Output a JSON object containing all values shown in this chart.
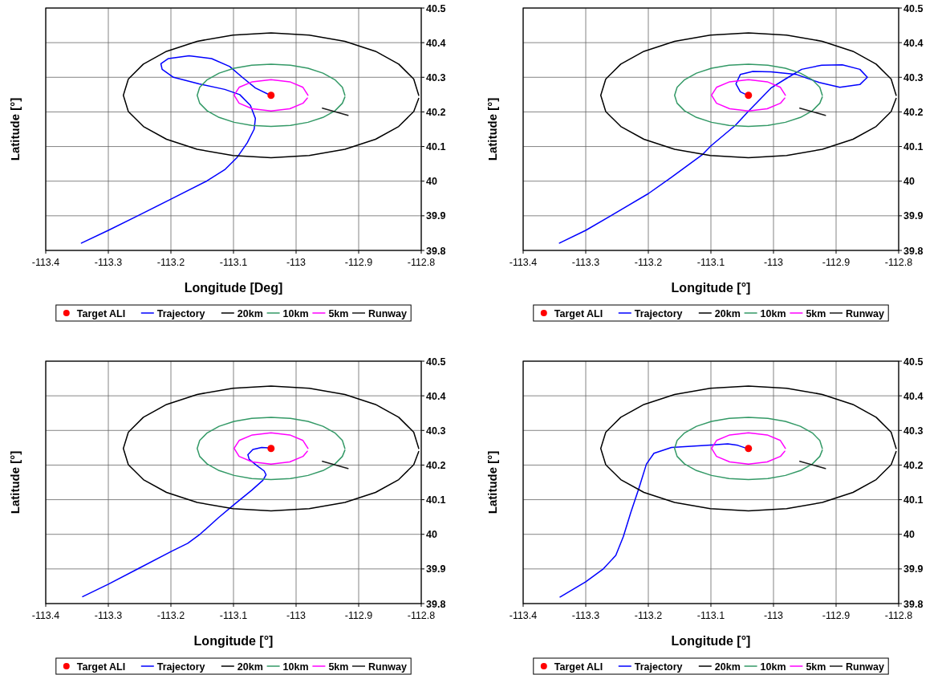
{
  "chart_data": [
    {
      "type": "line",
      "xlabel": "Longitude [Deg]",
      "ylabel": "Latitude [°]",
      "xlim": [
        -113.4,
        -112.8
      ],
      "ylim": [
        39.8,
        40.5
      ],
      "xticks": [
        -113.4,
        -113.3,
        -113.2,
        -113.1,
        -113,
        -112.9,
        -112.8
      ],
      "yticks": [
        39.8,
        39.9,
        40,
        40.1,
        40.2,
        40.3,
        40.4,
        40.5
      ],
      "grid": true,
      "legend": "bottom",
      "series": [
        {
          "name": "Target ALI",
          "type": "scatter",
          "marker": "circle",
          "color": "#ff0000",
          "x": [
            -113.04
          ],
          "values": [
            40.248
          ]
        },
        {
          "name": "Trajectory",
          "color": "#0000ff",
          "x": [
            -113.343,
            -113.3,
            -113.253,
            -113.2,
            -113.143,
            -113.114,
            -113.094,
            -113.078,
            -113.067,
            -113.065,
            -113.073,
            -113.09,
            -113.114,
            -113.155,
            -113.196,
            -113.214,
            -113.216,
            -113.204,
            -113.171,
            -113.135,
            -113.106,
            -113.086,
            -113.065,
            -113.041
          ],
          "values": [
            39.821,
            39.858,
            39.9,
            39.948,
            40.0,
            40.033,
            40.069,
            40.111,
            40.15,
            40.181,
            40.219,
            40.25,
            40.265,
            40.281,
            40.3,
            40.323,
            40.339,
            40.354,
            40.362,
            40.354,
            40.331,
            40.3,
            40.269,
            40.248
          ]
        },
        {
          "name": "20km",
          "color": "#000000",
          "x": [
            -112.804,
            -112.812,
            -112.836,
            -112.873,
            -112.922,
            -112.979,
            -113.04,
            -113.101,
            -113.158,
            -113.207,
            -113.244,
            -113.268,
            -113.276,
            -113.268,
            -113.244,
            -113.207,
            -113.158,
            -113.101,
            -113.04,
            -112.979,
            -112.922,
            -112.873,
            -112.836,
            -112.812,
            -112.804
          ],
          "values": [
            40.248,
            40.295,
            40.338,
            40.375,
            40.404,
            40.422,
            40.428,
            40.422,
            40.404,
            40.375,
            40.338,
            40.295,
            40.248,
            40.201,
            40.158,
            40.121,
            40.092,
            40.074,
            40.068,
            40.074,
            40.092,
            40.121,
            40.158,
            40.201,
            40.239
          ]
        },
        {
          "name": "10km",
          "color": "#339966",
          "x": [
            -112.922,
            -112.926,
            -112.938,
            -112.957,
            -112.981,
            -113.009,
            -113.04,
            -113.071,
            -113.099,
            -113.123,
            -113.142,
            -113.154,
            -113.158,
            -113.154,
            -113.142,
            -113.123,
            -113.099,
            -113.071,
            -113.04,
            -113.009,
            -112.981,
            -112.957,
            -112.938,
            -112.926,
            -112.922
          ],
          "values": [
            40.248,
            40.271,
            40.293,
            40.312,
            40.326,
            40.335,
            40.338,
            40.335,
            40.326,
            40.312,
            40.293,
            40.271,
            40.248,
            40.225,
            40.203,
            40.184,
            40.17,
            40.161,
            40.158,
            40.161,
            40.17,
            40.184,
            40.203,
            40.225,
            40.243
          ]
        },
        {
          "name": "5km",
          "color": "#ff00ff",
          "x": [
            -112.981,
            -112.989,
            -113.01,
            -113.04,
            -113.07,
            -113.091,
            -113.099,
            -113.091,
            -113.07,
            -113.04,
            -113.01,
            -112.989,
            -112.982
          ],
          "values": [
            40.248,
            40.271,
            40.287,
            40.293,
            40.287,
            40.271,
            40.248,
            40.225,
            40.209,
            40.203,
            40.209,
            40.225,
            40.24
          ]
        },
        {
          "name": "Runway",
          "color": "#1a1a1a",
          "x": [
            -112.958,
            -112.917
          ],
          "values": [
            40.211,
            40.19
          ]
        }
      ]
    },
    {
      "type": "line",
      "xlabel": "Longitude [°]",
      "ylabel": "Latitude [°]",
      "xlim": [
        -113.4,
        -112.8
      ],
      "ylim": [
        39.8,
        40.5
      ],
      "xticks": [
        -113.4,
        -113.3,
        -113.2,
        -113.1,
        -113,
        -112.9,
        -112.8
      ],
      "yticks": [
        39.8,
        39.9,
        40,
        40.1,
        40.2,
        40.3,
        40.4,
        40.5
      ],
      "grid": true,
      "legend": "bottom",
      "series": [
        {
          "name": "Target ALI",
          "type": "scatter",
          "marker": "circle",
          "color": "#ff0000",
          "x": [
            -113.04
          ],
          "values": [
            40.248
          ]
        },
        {
          "name": "Trajectory",
          "color": "#0000ff",
          "x": [
            -113.342,
            -113.3,
            -113.26,
            -113.2,
            -113.163,
            -113.114,
            -113.1,
            -113.061,
            -113.039,
            -113.004,
            -112.98,
            -112.955,
            -112.923,
            -112.89,
            -112.862,
            -112.85,
            -112.862,
            -112.894,
            -112.927,
            -112.963,
            -113.004,
            -113.033,
            -113.053,
            -113.06,
            -113.053,
            -113.039
          ],
          "values": [
            39.821,
            39.858,
            39.9,
            39.964,
            40.011,
            40.076,
            40.102,
            40.161,
            40.204,
            40.269,
            40.296,
            40.323,
            40.335,
            40.336,
            40.323,
            40.3,
            40.279,
            40.271,
            40.285,
            40.308,
            40.316,
            40.317,
            40.308,
            40.281,
            40.258,
            40.246
          ]
        },
        {
          "name": "20km",
          "color": "#000000",
          "x": [
            -112.804,
            -112.812,
            -112.836,
            -112.873,
            -112.922,
            -112.979,
            -113.04,
            -113.101,
            -113.158,
            -113.207,
            -113.244,
            -113.268,
            -113.276,
            -113.268,
            -113.244,
            -113.207,
            -113.158,
            -113.101,
            -113.04,
            -112.979,
            -112.922,
            -112.873,
            -112.836,
            -112.812,
            -112.804
          ],
          "values": [
            40.248,
            40.295,
            40.338,
            40.375,
            40.404,
            40.422,
            40.428,
            40.422,
            40.404,
            40.375,
            40.338,
            40.295,
            40.248,
            40.201,
            40.158,
            40.121,
            40.092,
            40.074,
            40.068,
            40.074,
            40.092,
            40.121,
            40.158,
            40.201,
            40.239
          ]
        },
        {
          "name": "10km",
          "color": "#339966",
          "x": [
            -112.922,
            -112.926,
            -112.938,
            -112.957,
            -112.981,
            -113.009,
            -113.04,
            -113.071,
            -113.099,
            -113.123,
            -113.142,
            -113.154,
            -113.158,
            -113.154,
            -113.142,
            -113.123,
            -113.099,
            -113.071,
            -113.04,
            -113.009,
            -112.981,
            -112.957,
            -112.938,
            -112.926,
            -112.922
          ],
          "values": [
            40.248,
            40.271,
            40.293,
            40.312,
            40.326,
            40.335,
            40.338,
            40.335,
            40.326,
            40.312,
            40.293,
            40.271,
            40.248,
            40.225,
            40.203,
            40.184,
            40.17,
            40.161,
            40.158,
            40.161,
            40.17,
            40.184,
            40.203,
            40.225,
            40.243
          ]
        },
        {
          "name": "5km",
          "color": "#ff00ff",
          "x": [
            -112.981,
            -112.989,
            -113.01,
            -113.04,
            -113.07,
            -113.091,
            -113.099,
            -113.091,
            -113.07,
            -113.04,
            -113.01,
            -112.989,
            -112.982
          ],
          "values": [
            40.248,
            40.271,
            40.287,
            40.293,
            40.287,
            40.271,
            40.248,
            40.225,
            40.209,
            40.203,
            40.209,
            40.225,
            40.24
          ]
        },
        {
          "name": "Runway",
          "color": "#1a1a1a",
          "x": [
            -112.958,
            -112.917
          ],
          "values": [
            40.211,
            40.19
          ]
        }
      ]
    },
    {
      "type": "line",
      "xlabel": "Longitude [°]",
      "ylabel": "Latitude [°]",
      "xlim": [
        -113.4,
        -112.8
      ],
      "ylim": [
        39.8,
        40.5
      ],
      "xticks": [
        -113.4,
        -113.3,
        -113.2,
        -113.1,
        -113,
        -112.9,
        -112.8
      ],
      "yticks": [
        39.8,
        39.9,
        40,
        40.1,
        40.2,
        40.3,
        40.4,
        40.5
      ],
      "grid": true,
      "legend": "bottom",
      "series": [
        {
          "name": "Target ALI",
          "type": "scatter",
          "marker": "circle",
          "color": "#ff0000",
          "x": [
            -113.04
          ],
          "values": [
            40.248
          ]
        },
        {
          "name": "Trajectory",
          "color": "#0000ff",
          "x": [
            -113.341,
            -113.3,
            -113.251,
            -113.199,
            -113.173,
            -113.153,
            -113.124,
            -113.099,
            -113.071,
            -113.053,
            -113.048,
            -113.051,
            -113.063,
            -113.075,
            -113.077,
            -113.069,
            -113.055,
            -113.039
          ],
          "values": [
            39.82,
            39.856,
            39.902,
            39.951,
            39.974,
            40.001,
            40.048,
            40.086,
            40.127,
            40.156,
            40.172,
            40.183,
            40.199,
            40.217,
            40.23,
            40.245,
            40.251,
            40.249
          ]
        },
        {
          "name": "20km",
          "color": "#000000",
          "x": [
            -112.804,
            -112.812,
            -112.836,
            -112.873,
            -112.922,
            -112.979,
            -113.04,
            -113.101,
            -113.158,
            -113.207,
            -113.244,
            -113.268,
            -113.276,
            -113.268,
            -113.244,
            -113.207,
            -113.158,
            -113.101,
            -113.04,
            -112.979,
            -112.922,
            -112.873,
            -112.836,
            -112.812,
            -112.804
          ],
          "values": [
            40.248,
            40.295,
            40.338,
            40.375,
            40.404,
            40.422,
            40.428,
            40.422,
            40.404,
            40.375,
            40.338,
            40.295,
            40.248,
            40.201,
            40.158,
            40.121,
            40.092,
            40.074,
            40.068,
            40.074,
            40.092,
            40.121,
            40.158,
            40.201,
            40.239
          ]
        },
        {
          "name": "10km",
          "color": "#339966",
          "x": [
            -112.922,
            -112.926,
            -112.938,
            -112.957,
            -112.981,
            -113.009,
            -113.04,
            -113.071,
            -113.099,
            -113.123,
            -113.142,
            -113.154,
            -113.158,
            -113.154,
            -113.142,
            -113.123,
            -113.099,
            -113.071,
            -113.04,
            -113.009,
            -112.981,
            -112.957,
            -112.938,
            -112.926,
            -112.922
          ],
          "values": [
            40.248,
            40.271,
            40.293,
            40.312,
            40.326,
            40.335,
            40.338,
            40.335,
            40.326,
            40.312,
            40.293,
            40.271,
            40.248,
            40.225,
            40.203,
            40.184,
            40.17,
            40.161,
            40.158,
            40.161,
            40.17,
            40.184,
            40.203,
            40.225,
            40.243
          ]
        },
        {
          "name": "5km",
          "color": "#ff00ff",
          "x": [
            -112.981,
            -112.989,
            -113.01,
            -113.04,
            -113.07,
            -113.091,
            -113.099,
            -113.091,
            -113.07,
            -113.04,
            -113.01,
            -112.989,
            -112.982
          ],
          "values": [
            40.248,
            40.271,
            40.287,
            40.293,
            40.287,
            40.271,
            40.248,
            40.225,
            40.209,
            40.203,
            40.209,
            40.225,
            40.24
          ]
        },
        {
          "name": "Runway",
          "color": "#1a1a1a",
          "x": [
            -112.958,
            -112.917
          ],
          "values": [
            40.211,
            40.19
          ]
        }
      ]
    },
    {
      "type": "line",
      "xlabel": "Longitude [°]",
      "ylabel": "Latitude [°]",
      "xlim": [
        -113.4,
        -112.8
      ],
      "ylim": [
        39.8,
        40.5
      ],
      "xticks": [
        -113.4,
        -113.3,
        -113.2,
        -113.1,
        -113,
        -112.9,
        -112.8
      ],
      "yticks": [
        39.8,
        39.9,
        40,
        40.1,
        40.2,
        40.3,
        40.4,
        40.5
      ],
      "grid": true,
      "legend": "bottom",
      "series": [
        {
          "name": "Target ALI",
          "type": "scatter",
          "marker": "circle",
          "color": "#ff0000",
          "x": [
            -113.04
          ],
          "values": [
            40.248
          ]
        },
        {
          "name": "Trajectory",
          "color": "#0000ff",
          "x": [
            -113.341,
            -113.3,
            -113.272,
            -113.252,
            -113.24,
            -113.228,
            -113.215,
            -113.203,
            -113.191,
            -113.163,
            -113.1,
            -113.073,
            -113.057,
            -113.041
          ],
          "values": [
            39.819,
            39.863,
            39.9,
            39.939,
            39.993,
            40.063,
            40.133,
            40.203,
            40.234,
            40.251,
            40.258,
            40.261,
            40.257,
            40.247
          ]
        },
        {
          "name": "20km",
          "color": "#000000",
          "x": [
            -112.804,
            -112.812,
            -112.836,
            -112.873,
            -112.922,
            -112.979,
            -113.04,
            -113.101,
            -113.158,
            -113.207,
            -113.244,
            -113.268,
            -113.276,
            -113.268,
            -113.244,
            -113.207,
            -113.158,
            -113.101,
            -113.04,
            -112.979,
            -112.922,
            -112.873,
            -112.836,
            -112.812,
            -112.804
          ],
          "values": [
            40.248,
            40.295,
            40.338,
            40.375,
            40.404,
            40.422,
            40.428,
            40.422,
            40.404,
            40.375,
            40.338,
            40.295,
            40.248,
            40.201,
            40.158,
            40.121,
            40.092,
            40.074,
            40.068,
            40.074,
            40.092,
            40.121,
            40.158,
            40.201,
            40.239
          ]
        },
        {
          "name": "10km",
          "color": "#339966",
          "x": [
            -112.922,
            -112.926,
            -112.938,
            -112.957,
            -112.981,
            -113.009,
            -113.04,
            -113.071,
            -113.099,
            -113.123,
            -113.142,
            -113.154,
            -113.158,
            -113.154,
            -113.142,
            -113.123,
            -113.099,
            -113.071,
            -113.04,
            -113.009,
            -112.981,
            -112.957,
            -112.938,
            -112.926,
            -112.922
          ],
          "values": [
            40.248,
            40.271,
            40.293,
            40.312,
            40.326,
            40.335,
            40.338,
            40.335,
            40.326,
            40.312,
            40.293,
            40.271,
            40.248,
            40.225,
            40.203,
            40.184,
            40.17,
            40.161,
            40.158,
            40.161,
            40.17,
            40.184,
            40.203,
            40.225,
            40.243
          ]
        },
        {
          "name": "5km",
          "color": "#ff00ff",
          "x": [
            -112.981,
            -112.989,
            -113.01,
            -113.04,
            -113.07,
            -113.091,
            -113.099,
            -113.091,
            -113.07,
            -113.04,
            -113.01,
            -112.989,
            -112.982
          ],
          "values": [
            40.248,
            40.271,
            40.287,
            40.293,
            40.287,
            40.271,
            40.248,
            40.225,
            40.209,
            40.203,
            40.209,
            40.225,
            40.24
          ]
        },
        {
          "name": "Runway",
          "color": "#1a1a1a",
          "x": [
            -112.958,
            -112.917
          ],
          "values": [
            40.211,
            40.19
          ]
        }
      ]
    }
  ]
}
